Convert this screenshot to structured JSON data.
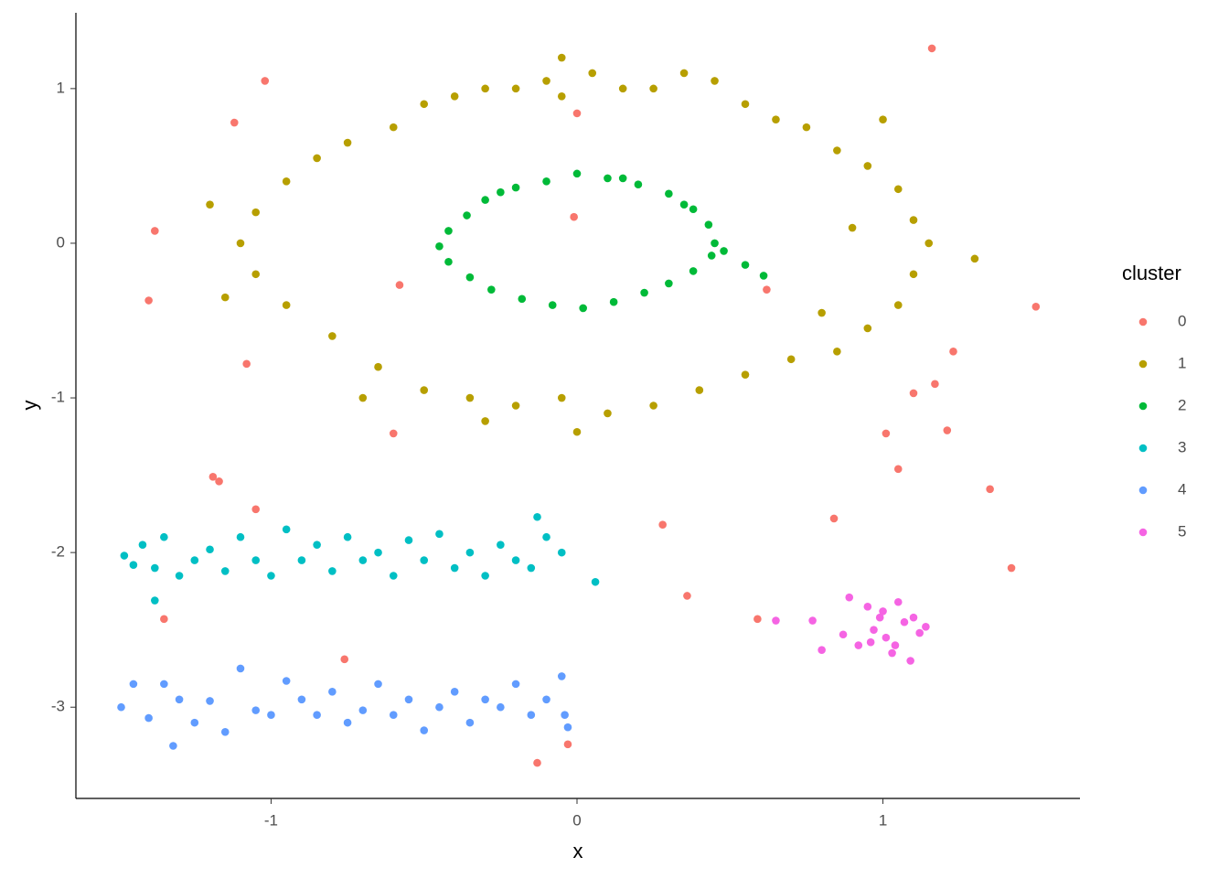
{
  "chart_data": {
    "type": "scatter",
    "x_label": "x",
    "y_label": "y",
    "xlim": [
      -1.638,
      1.644
    ],
    "ylim": [
      -3.59,
      1.49
    ],
    "xticks": [
      -1,
      0,
      1
    ],
    "yticks": [
      -3,
      -2,
      -1,
      0,
      1
    ],
    "legend_title": "cluster",
    "legend_position": "right",
    "series": [
      {
        "name": "0",
        "color": "#F8766D",
        "x": [
          -1.02,
          -1.12,
          -1.38,
          -1.4,
          -0.58,
          -1.08,
          0.0,
          -0.01,
          1.16,
          0.62,
          1.5,
          1.23,
          1.17,
          1.1,
          1.21,
          1.01,
          -0.6,
          1.05,
          -1.19,
          -1.17,
          -1.05,
          1.35,
          0.28,
          0.84,
          1.42,
          0.36,
          -1.35,
          0.59,
          -0.76,
          -0.03,
          -0.13
        ],
        "y": [
          1.05,
          0.78,
          0.08,
          -0.37,
          -0.27,
          -0.78,
          0.84,
          0.17,
          1.26,
          -0.3,
          -0.41,
          -0.7,
          -0.91,
          -0.97,
          -1.21,
          -1.23,
          -1.23,
          -1.46,
          -1.51,
          -1.54,
          -1.72,
          -1.59,
          -1.82,
          -1.78,
          -2.1,
          -2.28,
          -2.43,
          -2.43,
          -2.69,
          -3.24,
          -3.36
        ]
      },
      {
        "name": "1",
        "color": "#B79F00",
        "x": [
          -0.6,
          -0.5,
          -0.4,
          -0.3,
          -0.2,
          -0.1,
          -0.05,
          0.05,
          0.15,
          0.25,
          0.35,
          0.45,
          0.55,
          0.65,
          0.75,
          0.85,
          0.95,
          1.05,
          1.1,
          1.15,
          1.1,
          1.05,
          0.95,
          0.85,
          0.7,
          0.55,
          0.4,
          0.25,
          0.1,
          -0.05,
          -0.2,
          -0.35,
          -0.5,
          -0.65,
          -0.8,
          -0.95,
          -1.05,
          -1.1,
          -1.05,
          -0.95,
          -0.85,
          -0.75,
          1.0,
          -1.2,
          -0.05,
          -0.3,
          0.8,
          -0.7,
          0.9,
          1.3,
          -1.15,
          0.0
        ],
        "y": [
          0.75,
          0.9,
          0.95,
          1.0,
          1.0,
          1.05,
          0.95,
          1.1,
          1.0,
          1.0,
          1.1,
          1.05,
          0.9,
          0.8,
          0.75,
          0.6,
          0.5,
          0.35,
          0.15,
          0.0,
          -0.2,
          -0.4,
          -0.55,
          -0.7,
          -0.75,
          -0.85,
          -0.95,
          -1.05,
          -1.1,
          -1.0,
          -1.05,
          -1.0,
          -0.95,
          -0.8,
          -0.6,
          -0.4,
          -0.2,
          0.0,
          0.2,
          0.4,
          0.55,
          0.65,
          0.8,
          0.25,
          1.2,
          -1.15,
          -0.45,
          -1.0,
          0.1,
          -0.1,
          -0.35,
          -1.22
        ]
      },
      {
        "name": "2",
        "color": "#00BA38",
        "x": [
          0.45,
          0.43,
          0.38,
          0.3,
          0.2,
          0.1,
          0.0,
          -0.1,
          -0.2,
          -0.3,
          -0.36,
          -0.42,
          -0.45,
          -0.42,
          -0.35,
          -0.28,
          -0.18,
          -0.08,
          0.02,
          0.12,
          0.22,
          0.3,
          0.38,
          0.44,
          0.48,
          0.61,
          0.55,
          -0.25,
          0.15,
          0.35
        ],
        "y": [
          0.0,
          0.12,
          0.22,
          0.32,
          0.38,
          0.42,
          0.45,
          0.4,
          0.36,
          0.28,
          0.18,
          0.08,
          -0.02,
          -0.12,
          -0.22,
          -0.3,
          -0.36,
          -0.4,
          -0.42,
          -0.38,
          -0.32,
          -0.26,
          -0.18,
          -0.08,
          -0.05,
          -0.21,
          -0.14,
          0.33,
          0.42,
          0.25
        ]
      },
      {
        "name": "3",
        "color": "#00BFC4",
        "x": [
          -1.48,
          -1.45,
          -1.42,
          -1.38,
          -1.35,
          -1.3,
          -1.25,
          -1.2,
          -1.15,
          -1.1,
          -1.05,
          -1.0,
          -0.95,
          -0.9,
          -0.85,
          -0.8,
          -0.75,
          -0.7,
          -0.65,
          -0.6,
          -0.55,
          -0.5,
          -0.45,
          -0.4,
          -0.35,
          -0.3,
          -0.25,
          -0.2,
          -0.15,
          -0.1,
          -0.05,
          0.06,
          -1.38,
          -0.13
        ],
        "y": [
          -2.02,
          -2.08,
          -1.95,
          -2.1,
          -1.9,
          -2.15,
          -2.05,
          -1.98,
          -2.12,
          -1.9,
          -2.05,
          -2.15,
          -1.85,
          -2.05,
          -1.95,
          -2.12,
          -1.9,
          -2.05,
          -2.0,
          -2.15,
          -1.92,
          -2.05,
          -1.88,
          -2.1,
          -2.0,
          -2.15,
          -1.95,
          -2.05,
          -2.1,
          -1.9,
          -2.0,
          -2.19,
          -2.31,
          -1.77
        ]
      },
      {
        "name": "4",
        "color": "#619CFF",
        "x": [
          -1.49,
          -1.45,
          -1.4,
          -1.35,
          -1.3,
          -1.25,
          -1.2,
          -1.15,
          -1.1,
          -1.05,
          -1.0,
          -0.95,
          -0.9,
          -0.85,
          -0.8,
          -0.75,
          -0.7,
          -0.65,
          -0.6,
          -0.55,
          -0.5,
          -0.45,
          -0.4,
          -0.35,
          -0.3,
          -0.25,
          -0.2,
          -0.15,
          -0.1,
          -0.05,
          -0.03,
          -1.32,
          -0.04
        ],
        "y": [
          -3.0,
          -2.85,
          -3.07,
          -2.85,
          -2.95,
          -3.1,
          -2.96,
          -3.16,
          -2.75,
          -3.02,
          -3.05,
          -2.83,
          -2.95,
          -3.05,
          -2.9,
          -3.1,
          -3.02,
          -2.85,
          -3.05,
          -2.95,
          -3.15,
          -3.0,
          -2.9,
          -3.1,
          -2.95,
          -3.0,
          -2.85,
          -3.05,
          -2.95,
          -2.8,
          -3.13,
          -3.25,
          -3.05
        ]
      },
      {
        "name": "5",
        "color": "#F564E3",
        "x": [
          0.65,
          0.77,
          0.8,
          0.87,
          0.89,
          0.92,
          0.95,
          0.97,
          0.99,
          1.01,
          1.03,
          1.05,
          1.07,
          1.09,
          1.12,
          1.14,
          0.96,
          1.0,
          1.04,
          1.1
        ],
        "y": [
          -2.44,
          -2.44,
          -2.63,
          -2.53,
          -2.29,
          -2.6,
          -2.35,
          -2.5,
          -2.42,
          -2.55,
          -2.65,
          -2.32,
          -2.45,
          -2.7,
          -2.52,
          -2.48,
          -2.58,
          -2.38,
          -2.6,
          -2.42
        ]
      }
    ]
  }
}
